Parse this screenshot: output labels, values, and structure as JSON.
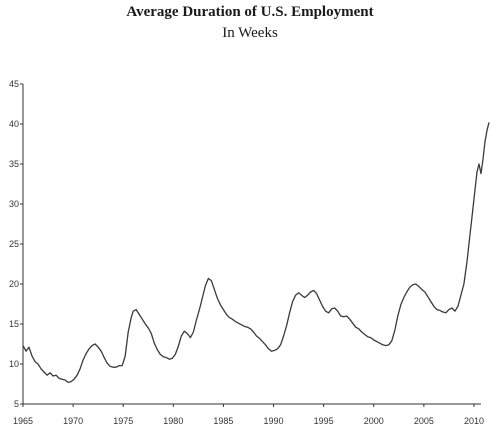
{
  "chart_data": {
    "type": "line",
    "title": "Average Duration of U.S. Employment",
    "subtitle": "In Weeks",
    "xlabel": "",
    "ylabel": "",
    "xlim": [
      1965,
      2011.6
    ],
    "ylim": [
      5,
      45
    ],
    "x_ticks": [
      "1965",
      "1970",
      "1975",
      "1980",
      "1985",
      "1990",
      "1995",
      "2000",
      "2005",
      "2010"
    ],
    "y_ticks": [
      "5",
      "10",
      "15",
      "20",
      "25",
      "30",
      "35",
      "40",
      "45"
    ],
    "grid": false,
    "legend": "none",
    "series": [
      {
        "color": "#3a3a3a",
        "points": [
          [
            1965.0,
            12.3
          ],
          [
            1965.3,
            11.6
          ],
          [
            1965.6,
            12.1
          ],
          [
            1965.9,
            11.0
          ],
          [
            1966.2,
            10.3
          ],
          [
            1966.5,
            10.0
          ],
          [
            1966.8,
            9.4
          ],
          [
            1967.1,
            9.0
          ],
          [
            1967.4,
            8.6
          ],
          [
            1967.7,
            8.9
          ],
          [
            1968.0,
            8.5
          ],
          [
            1968.3,
            8.6
          ],
          [
            1968.6,
            8.2
          ],
          [
            1968.9,
            8.1
          ],
          [
            1969.2,
            8.0
          ],
          [
            1969.5,
            7.7
          ],
          [
            1969.8,
            7.8
          ],
          [
            1970.1,
            8.1
          ],
          [
            1970.4,
            8.6
          ],
          [
            1970.7,
            9.4
          ],
          [
            1971.0,
            10.5
          ],
          [
            1971.3,
            11.3
          ],
          [
            1971.6,
            11.9
          ],
          [
            1971.9,
            12.3
          ],
          [
            1972.2,
            12.5
          ],
          [
            1972.5,
            12.1
          ],
          [
            1972.8,
            11.6
          ],
          [
            1973.1,
            10.8
          ],
          [
            1973.4,
            10.1
          ],
          [
            1973.7,
            9.7
          ],
          [
            1974.0,
            9.6
          ],
          [
            1974.3,
            9.6
          ],
          [
            1974.6,
            9.8
          ],
          [
            1974.9,
            9.8
          ],
          [
            1975.2,
            11.0
          ],
          [
            1975.5,
            14.0
          ],
          [
            1975.8,
            15.8
          ],
          [
            1976.0,
            16.6
          ],
          [
            1976.3,
            16.8
          ],
          [
            1976.6,
            16.2
          ],
          [
            1976.9,
            15.6
          ],
          [
            1977.2,
            15.0
          ],
          [
            1977.5,
            14.5
          ],
          [
            1977.8,
            13.8
          ],
          [
            1978.1,
            12.6
          ],
          [
            1978.4,
            11.8
          ],
          [
            1978.7,
            11.2
          ],
          [
            1979.0,
            10.9
          ],
          [
            1979.3,
            10.8
          ],
          [
            1979.6,
            10.6
          ],
          [
            1979.9,
            10.7
          ],
          [
            1980.2,
            11.2
          ],
          [
            1980.5,
            12.2
          ],
          [
            1980.8,
            13.5
          ],
          [
            1981.1,
            14.1
          ],
          [
            1981.4,
            13.8
          ],
          [
            1981.7,
            13.3
          ],
          [
            1982.0,
            14.0
          ],
          [
            1982.3,
            15.5
          ],
          [
            1982.6,
            16.8
          ],
          [
            1982.9,
            18.3
          ],
          [
            1983.2,
            19.8
          ],
          [
            1983.5,
            20.7
          ],
          [
            1983.8,
            20.4
          ],
          [
            1984.1,
            19.3
          ],
          [
            1984.4,
            18.2
          ],
          [
            1984.7,
            17.4
          ],
          [
            1985.0,
            16.8
          ],
          [
            1985.3,
            16.2
          ],
          [
            1985.6,
            15.8
          ],
          [
            1985.9,
            15.6
          ],
          [
            1986.2,
            15.3
          ],
          [
            1986.5,
            15.1
          ],
          [
            1986.8,
            14.9
          ],
          [
            1987.1,
            14.7
          ],
          [
            1987.4,
            14.6
          ],
          [
            1987.7,
            14.4
          ],
          [
            1988.0,
            14.0
          ],
          [
            1988.3,
            13.5
          ],
          [
            1988.6,
            13.2
          ],
          [
            1988.9,
            12.8
          ],
          [
            1989.2,
            12.4
          ],
          [
            1989.5,
            11.9
          ],
          [
            1989.8,
            11.6
          ],
          [
            1990.1,
            11.7
          ],
          [
            1990.4,
            11.9
          ],
          [
            1990.7,
            12.4
          ],
          [
            1991.0,
            13.5
          ],
          [
            1991.3,
            14.8
          ],
          [
            1991.6,
            16.4
          ],
          [
            1991.9,
            17.8
          ],
          [
            1992.2,
            18.6
          ],
          [
            1992.5,
            18.9
          ],
          [
            1992.8,
            18.6
          ],
          [
            1993.1,
            18.3
          ],
          [
            1993.4,
            18.6
          ],
          [
            1993.7,
            19.0
          ],
          [
            1994.0,
            19.2
          ],
          [
            1994.3,
            18.8
          ],
          [
            1994.6,
            18.0
          ],
          [
            1994.9,
            17.2
          ],
          [
            1995.2,
            16.6
          ],
          [
            1995.5,
            16.4
          ],
          [
            1995.8,
            16.9
          ],
          [
            1996.1,
            17.0
          ],
          [
            1996.4,
            16.6
          ],
          [
            1996.7,
            16.0
          ],
          [
            1997.0,
            15.9
          ],
          [
            1997.3,
            16.0
          ],
          [
            1997.6,
            15.6
          ],
          [
            1997.9,
            15.1
          ],
          [
            1998.2,
            14.6
          ],
          [
            1998.5,
            14.4
          ],
          [
            1998.8,
            14.0
          ],
          [
            1999.1,
            13.7
          ],
          [
            1999.4,
            13.4
          ],
          [
            1999.7,
            13.3
          ],
          [
            2000.0,
            13.0
          ],
          [
            2000.3,
            12.8
          ],
          [
            2000.6,
            12.6
          ],
          [
            2000.9,
            12.4
          ],
          [
            2001.2,
            12.3
          ],
          [
            2001.5,
            12.4
          ],
          [
            2001.8,
            12.9
          ],
          [
            2002.1,
            14.2
          ],
          [
            2002.4,
            16.0
          ],
          [
            2002.7,
            17.4
          ],
          [
            2003.0,
            18.3
          ],
          [
            2003.3,
            19.0
          ],
          [
            2003.6,
            19.6
          ],
          [
            2003.9,
            19.9
          ],
          [
            2004.2,
            20.0
          ],
          [
            2004.5,
            19.7
          ],
          [
            2004.8,
            19.3
          ],
          [
            2005.1,
            19.0
          ],
          [
            2005.4,
            18.4
          ],
          [
            2005.7,
            17.8
          ],
          [
            2006.0,
            17.2
          ],
          [
            2006.3,
            16.8
          ],
          [
            2006.6,
            16.7
          ],
          [
            2006.9,
            16.5
          ],
          [
            2007.2,
            16.4
          ],
          [
            2007.5,
            16.8
          ],
          [
            2007.8,
            17.0
          ],
          [
            2008.1,
            16.6
          ],
          [
            2008.4,
            17.2
          ],
          [
            2008.7,
            18.6
          ],
          [
            2009.0,
            20.0
          ],
          [
            2009.3,
            22.8
          ],
          [
            2009.6,
            26.2
          ],
          [
            2009.9,
            29.5
          ],
          [
            2010.1,
            31.8
          ],
          [
            2010.3,
            34.0
          ],
          [
            2010.5,
            35.0
          ],
          [
            2010.7,
            33.8
          ],
          [
            2010.9,
            35.6
          ],
          [
            2011.1,
            37.8
          ],
          [
            2011.3,
            39.2
          ],
          [
            2011.5,
            40.2
          ]
        ]
      }
    ]
  }
}
